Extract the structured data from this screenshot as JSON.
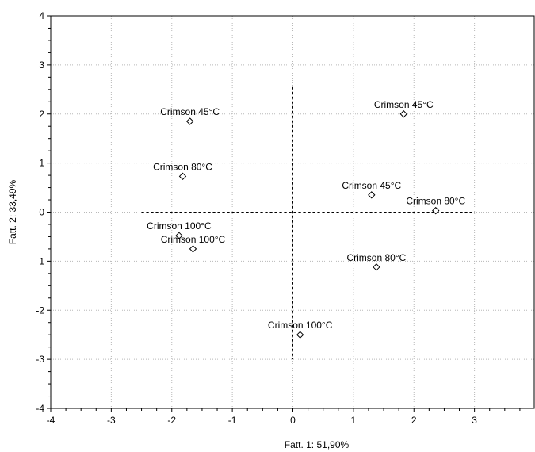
{
  "chart_data": {
    "type": "scatter",
    "title": "",
    "xlabel": "Fatt.  1: 51,90%",
    "ylabel": "Fatt.  2: 33,49%",
    "xlim": [
      -4,
      4
    ],
    "ylim": [
      -4,
      4
    ],
    "x_ticks": [
      -4,
      -3,
      -2,
      -1,
      0,
      1,
      2,
      3
    ],
    "y_ticks": [
      -4,
      -3,
      -2,
      -1,
      0,
      1,
      2,
      3,
      4
    ],
    "grid": true,
    "grid_style": "dotted",
    "reference_lines": {
      "x": 0,
      "y": 0,
      "style": "dashed",
      "x_extent": [
        -2.5,
        3.0
      ],
      "y_extent": [
        -3.0,
        2.55
      ]
    },
    "marker": "diamond-open",
    "points": [
      {
        "label": "Crimson 45°C",
        "x": -1.7,
        "y": 1.85
      },
      {
        "label": "Crimson 80°C",
        "x": -1.82,
        "y": 0.73
      },
      {
        "label": "Crimson 100°C",
        "x": -1.88,
        "y": -0.48
      },
      {
        "label": "Crimson 100°C",
        "x": -1.65,
        "y": -0.75
      },
      {
        "label": "Crimson 45°C",
        "x": 1.83,
        "y": 2.0
      },
      {
        "label": "Crimson 45°C",
        "x": 1.3,
        "y": 0.35
      },
      {
        "label": "Crimson 80°C",
        "x": 2.36,
        "y": 0.03
      },
      {
        "label": "Crimson 80°C",
        "x": 1.38,
        "y": -1.12
      },
      {
        "label": "Crimson 100°C",
        "x": 0.12,
        "y": -2.5
      }
    ]
  }
}
